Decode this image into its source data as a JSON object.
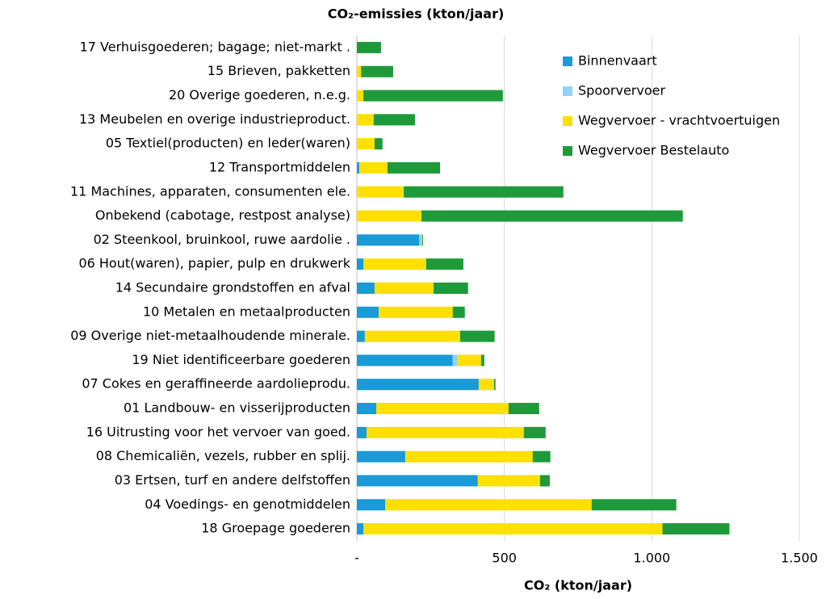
{
  "chart_data": {
    "type": "stacked-barh",
    "title": "CO₂-emissies (kton/jaar)",
    "x_label": "CO₂ (kton/jaar)",
    "categories": [
      "17 Verhuisgoederen; bagage; niet-markt .",
      "15 Brieven, pakketten",
      "20 Overige goederen, n.e.g.",
      "13 Meubelen en overige industrieproduct.",
      "05 Textiel(producten) en leder(waren)",
      "12 Transportmiddelen",
      "11 Machines, apparaten, consumenten ele.",
      "Onbekend (cabotage, restpost analyse)",
      "02 Steenkool, bruinkool, ruwe aardolie .",
      "06 Hout(waren), papier, pulp en drukwerk",
      "14 Secundaire grondstoffen en afval",
      "10 Metalen en metaalproducten",
      "09 Overige niet-metaalhoudende minerale.",
      "19 Niet identificeerbare goederen",
      "07 Cokes en geraffineerde aardolieprodu.",
      "01 Landbouw- en visserijproducten",
      "16 Uitrusting voor het vervoer van goed.",
      "08 Chemicaliën, vezels, rubber en splij.",
      "03 Ertsen, turf en andere delfstoffen",
      "04 Voedings- en genotmiddelen",
      "18 Groepage goederen"
    ],
    "series": [
      {
        "name": "Binnenvaart",
        "color": "#1a9ad6",
        "values": [
          0,
          0,
          0,
          0,
          0,
          8,
          0,
          0,
          211,
          22,
          60,
          74,
          27,
          325,
          413,
          66,
          33,
          164,
          410,
          96,
          22
        ]
      },
      {
        "name": "Spoorvervoer",
        "color": "#8fd3f5",
        "values": [
          0,
          0,
          0,
          0,
          0,
          0,
          0,
          0,
          8,
          0,
          0,
          0,
          0,
          16,
          0,
          0,
          0,
          0,
          0,
          0,
          0
        ]
      },
      {
        "name": "Wegvervoer - vrachtvoertuigen",
        "color": "#ffe000",
        "values": [
          0,
          14,
          22,
          57,
          60,
          96,
          159,
          219,
          2,
          213,
          200,
          251,
          323,
          80,
          52,
          448,
          533,
          432,
          211,
          700,
          1014
        ]
      },
      {
        "name": "Wegvervoer Bestelauto",
        "color": "#1e9a3a",
        "values": [
          82,
          109,
          473,
          140,
          27,
          178,
          541,
          886,
          3,
          126,
          117,
          41,
          117,
          11,
          5,
          104,
          74,
          60,
          33,
          287,
          227
        ]
      }
    ],
    "xlim": [
      0,
      1500
    ],
    "xticks": [
      {
        "value": 0,
        "label": "-"
      },
      500,
      {
        "value": 1000,
        "label": "1.000"
      },
      {
        "value": 1500,
        "label": "1.500"
      }
    ],
    "grid": true,
    "legend": "upper right"
  }
}
